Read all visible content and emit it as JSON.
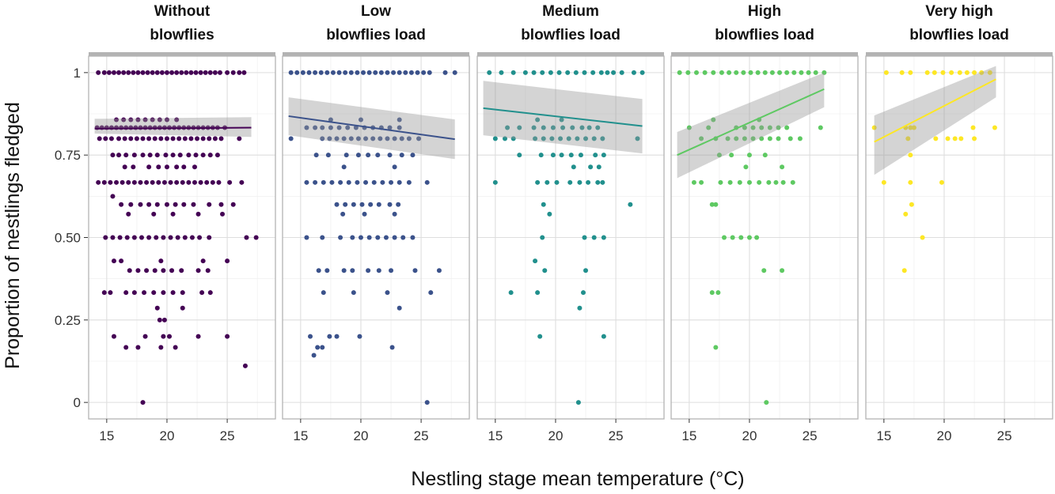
{
  "chart_data": {
    "type": "scatter",
    "xlabel": "Nestling stage mean temperature (°C)",
    "ylabel": "Proportion of nestlings fledged",
    "xlim": [
      13.5,
      29
    ],
    "ylim": [
      -0.05,
      1.05
    ],
    "x_ticks": [
      15,
      20,
      25
    ],
    "x_tick_labels": [
      "15",
      "20",
      "25"
    ],
    "y_ticks": [
      0,
      0.25,
      0.5,
      0.75,
      1
    ],
    "y_tick_labels": [
      "0",
      "0.25",
      "0.50",
      "0.75",
      "1"
    ],
    "grid": true,
    "legend": "none",
    "panels": [
      {
        "title_line1": "Without",
        "title_line2": "blowflies",
        "color": "#440154",
        "fit": {
          "x": [
            14,
            27
          ],
          "y": [
            0.83,
            0.833
          ]
        },
        "ci": {
          "upper": [
            0.86,
            0.865
          ],
          "lower": [
            0.815,
            0.805
          ]
        },
        "groups": [
          {
            "y": 1,
            "x": [
              14.3,
              14.8,
              15.2,
              15.6,
              16.0,
              16.4,
              16.8,
              17.2,
              17.6,
              18.0,
              18.4,
              18.8,
              19.2,
              19.6,
              20.0,
              20.4,
              20.8,
              21.2,
              21.6,
              22.0,
              22.4,
              22.8,
              23.2,
              23.6,
              24.0,
              24.4,
              25.0,
              25.5,
              26.0,
              26.4
            ]
          },
          {
            "y": 0.857,
            "x": [
              15.8,
              16.4,
              17.0,
              17.6,
              18.2,
              18.8,
              19.4,
              20.0,
              20.8
            ]
          },
          {
            "y": 0.833,
            "x": [
              14.2,
              14.6,
              15.0,
              15.4,
              15.8,
              16.2,
              16.6,
              17.0,
              17.4,
              17.8,
              18.2,
              18.6,
              19.0,
              19.4,
              19.8,
              20.2,
              20.6,
              21.0,
              21.4,
              21.8,
              22.2,
              22.6,
              23.0,
              23.4,
              23.8,
              24.2,
              24.8
            ]
          },
          {
            "y": 0.8,
            "x": [
              14.4,
              14.9,
              15.4,
              16.0,
              16.5,
              17.0,
              17.5,
              18.0,
              18.5,
              19.0,
              19.5,
              20.0,
              20.5,
              21.0,
              21.5,
              22.0,
              22.5,
              23.0,
              23.5,
              24.0,
              24.5,
              26.0
            ]
          },
          {
            "y": 0.75,
            "x": [
              15.5,
              16.0,
              16.6,
              17.3,
              18.0,
              18.6,
              19.2,
              19.9,
              20.5,
              21.1,
              21.8,
              22.4,
              23.0,
              23.6,
              24.2
            ]
          },
          {
            "y": 0.714,
            "x": [
              16.5,
              17.2,
              18.5,
              19.3,
              20.0,
              20.8,
              21.4,
              22.3
            ]
          },
          {
            "y": 0.667,
            "x": [
              14.3,
              14.8,
              15.3,
              15.8,
              16.3,
              16.8,
              17.3,
              17.8,
              18.3,
              18.8,
              19.3,
              19.8,
              20.3,
              20.8,
              21.3,
              21.8,
              22.3,
              22.8,
              23.3,
              23.8,
              24.3,
              25.2,
              26.2
            ]
          },
          {
            "y": 0.625,
            "x": [
              15.5
            ]
          },
          {
            "y": 0.6,
            "x": [
              16.2,
              17.0,
              17.8,
              18.5,
              19.2,
              20.0,
              20.7,
              21.4,
              22.2,
              23.5,
              24.5,
              25.5
            ]
          },
          {
            "y": 0.571,
            "x": [
              16.8,
              18.9,
              20.5,
              22.6,
              24.6
            ]
          },
          {
            "y": 0.5,
            "x": [
              14.9,
              15.5,
              16.1,
              16.7,
              17.3,
              17.9,
              18.5,
              19.1,
              19.7,
              20.3,
              20.9,
              21.5,
              22.1,
              22.7,
              23.5,
              26.6,
              27.4
            ]
          },
          {
            "y": 0.429,
            "x": [
              15.6,
              16.2,
              19.5,
              23.0,
              25.0
            ]
          },
          {
            "y": 0.4,
            "x": [
              16.9,
              17.6,
              18.3,
              19.0,
              19.7,
              20.4,
              21.2,
              22.6,
              23.4
            ]
          },
          {
            "y": 0.333,
            "x": [
              14.8,
              15.3,
              16.6,
              17.3,
              18.1,
              18.9,
              19.7,
              20.5,
              21.3,
              22.9,
              23.6
            ]
          },
          {
            "y": 0.286,
            "x": [
              19.2,
              21.3
            ]
          },
          {
            "y": 0.25,
            "x": [
              19.4,
              19.8
            ]
          },
          {
            "y": 0.2,
            "x": [
              15.6,
              18.2,
              19.7,
              20.2,
              22.6,
              25.0
            ]
          },
          {
            "y": 0.167,
            "x": [
              16.6,
              17.6,
              19.5,
              20.7
            ]
          },
          {
            "y": 0.111,
            "x": [
              26.5
            ]
          },
          {
            "y": 0,
            "x": [
              18.0
            ]
          }
        ]
      },
      {
        "title_line1": "Low",
        "title_line2": "blowflies load",
        "color": "#3b528b",
        "fit": {
          "x": [
            14,
            27.8
          ],
          "y": [
            0.868,
            0.798
          ]
        },
        "ci": {
          "upper": [
            0.925,
            0.858
          ],
          "lower": [
            0.81,
            0.738
          ]
        },
        "groups": [
          {
            "y": 1,
            "x": [
              14.2,
              14.7,
              15.2,
              15.7,
              16.2,
              16.7,
              17.2,
              17.7,
              18.2,
              18.7,
              19.2,
              19.7,
              20.2,
              20.7,
              21.2,
              21.7,
              22.2,
              22.7,
              23.2,
              23.7,
              24.2,
              24.7,
              25.2,
              25.7,
              27.0,
              27.8
            ]
          },
          {
            "y": 0.857,
            "x": [
              17.5,
              20.0,
              23.2
            ]
          },
          {
            "y": 0.833,
            "x": [
              15.5,
              16.2,
              16.8,
              17.5,
              18.2,
              18.9,
              19.6,
              20.3,
              21.0,
              21.7,
              22.4,
              23.2
            ]
          },
          {
            "y": 0.8,
            "x": [
              14.2,
              16.8,
              17.4,
              18.0,
              18.6,
              19.2,
              19.8,
              20.4,
              21.0,
              21.6,
              22.2,
              22.8,
              23.4,
              24.0,
              24.8
            ]
          },
          {
            "y": 0.75,
            "x": [
              16.3,
              17.3,
              18.8,
              19.8,
              20.6,
              21.4,
              22.4,
              23.4,
              24.3
            ]
          },
          {
            "y": 0.714,
            "x": [
              18.6,
              22.8
            ]
          },
          {
            "y": 0.667,
            "x": [
              15.5,
              16.2,
              16.9,
              17.6,
              18.3,
              19.0,
              19.7,
              20.4,
              21.1,
              21.8,
              22.5,
              23.2,
              24.0,
              25.5
            ]
          },
          {
            "y": 0.6,
            "x": [
              18.0,
              18.7,
              19.4,
              20.1,
              20.8,
              21.5,
              22.4,
              23.1
            ]
          },
          {
            "y": 0.571,
            "x": [
              18.5,
              20.3,
              22.8
            ]
          },
          {
            "y": 0.5,
            "x": [
              15.5,
              16.8,
              18.3,
              19.3,
              20.0,
              20.7,
              21.4,
              22.1,
              22.8,
              23.5,
              24.3
            ]
          },
          {
            "y": 0.4,
            "x": [
              16.5,
              17.2,
              18.6,
              19.3,
              20.6,
              21.5,
              22.5,
              24.5,
              26.5
            ]
          },
          {
            "y": 0.333,
            "x": [
              16.9,
              19.4,
              22.2,
              25.8
            ]
          },
          {
            "y": 0.286,
            "x": [
              23.2
            ]
          },
          {
            "y": 0.2,
            "x": [
              15.8,
              17.4,
              18.0,
              19.9
            ]
          },
          {
            "y": 0.167,
            "x": [
              16.4,
              16.8,
              22.6
            ]
          },
          {
            "y": 0.143,
            "x": [
              16.1
            ]
          },
          {
            "y": 0,
            "x": [
              25.5
            ]
          }
        ]
      },
      {
        "title_line1": "Medium",
        "title_line2": "blowflies load",
        "color": "#21908d",
        "fit": {
          "x": [
            14,
            27.2
          ],
          "y": [
            0.892,
            0.838
          ]
        },
        "ci": {
          "upper": [
            0.975,
            0.92
          ],
          "lower": [
            0.81,
            0.755
          ]
        },
        "groups": [
          {
            "y": 1,
            "x": [
              14.5,
              15.5,
              16.5,
              17.5,
              18.2,
              18.9,
              19.6,
              20.3,
              21.0,
              21.7,
              22.4,
              23.1,
              23.8,
              24.3,
              24.8,
              25.5,
              26.5,
              27.2
            ]
          },
          {
            "y": 0.833,
            "x": [
              16.0,
              17.0,
              18.2,
              19.0,
              19.8,
              20.6,
              21.4,
              22.2,
              22.8,
              23.5
            ]
          },
          {
            "y": 0.857,
            "x": [
              18.5,
              20.5
            ]
          },
          {
            "y": 0.8,
            "x": [
              15.0,
              15.8,
              16.5,
              18.3,
              19.0,
              19.7,
              20.4,
              21.1,
              21.8,
              22.5,
              23.2,
              23.9,
              26.8
            ]
          },
          {
            "y": 0.75,
            "x": [
              17.0,
              18.8,
              19.8,
              20.5,
              21.3,
              22.1,
              23.3,
              24.0
            ]
          },
          {
            "y": 0.714,
            "x": [
              21.5,
              22.9,
              23.6
            ]
          },
          {
            "y": 0.667,
            "x": [
              15.0,
              18.5,
              19.3,
              20.1,
              21.2,
              22.0,
              22.7,
              23.5,
              23.9
            ]
          },
          {
            "y": 0.6,
            "x": [
              19.0,
              26.2
            ]
          },
          {
            "y": 0.571,
            "x": [
              19.5
            ]
          },
          {
            "y": 0.5,
            "x": [
              18.9,
              22.4,
              23.2,
              24.0
            ]
          },
          {
            "y": 0.429,
            "x": [
              18.3
            ]
          },
          {
            "y": 0.4,
            "x": [
              19.1,
              22.5
            ]
          },
          {
            "y": 0.333,
            "x": [
              16.3,
              18.5,
              22.3
            ]
          },
          {
            "y": 0.286,
            "x": [
              22.0
            ]
          },
          {
            "y": 0.2,
            "x": [
              18.7,
              24.0
            ]
          },
          {
            "y": 0,
            "x": [
              21.9
            ]
          }
        ]
      },
      {
        "title_line1": "High",
        "title_line2": "blowflies load",
        "color": "#5ec962",
        "fit": {
          "x": [
            14,
            26.2
          ],
          "y": [
            0.75,
            0.95
          ]
        },
        "ci": {
          "upper": [
            0.82,
            1.0
          ],
          "lower": [
            0.68,
            0.895
          ]
        },
        "groups": [
          {
            "y": 1,
            "x": [
              14.2,
              14.9,
              15.6,
              16.3,
              17.0,
              17.7,
              18.3,
              18.9,
              19.5,
              20.1,
              20.7,
              21.3,
              21.9,
              22.5,
              23.1,
              23.7,
              24.3,
              24.9,
              25.5,
              26.2
            ]
          },
          {
            "y": 0.857,
            "x": [
              17.0,
              20.8
            ]
          },
          {
            "y": 0.833,
            "x": [
              15.0,
              16.6,
              18.9,
              19.6,
              20.3,
              21.0,
              21.7,
              22.4,
              23.1,
              25.9
            ]
          },
          {
            "y": 0.8,
            "x": [
              16.0,
              17.2,
              18.2,
              18.9,
              19.6,
              20.3,
              21.0,
              21.7,
              22.4,
              23.4,
              24.2
            ]
          },
          {
            "y": 0.75,
            "x": [
              17.5,
              18.5,
              20.0,
              21.3
            ]
          },
          {
            "y": 0.714,
            "x": [
              19.7,
              22.7
            ]
          },
          {
            "y": 0.667,
            "x": [
              15.4,
              16.0,
              17.6,
              18.4,
              19.2,
              20.0,
              20.8,
              21.6,
              22.2,
              22.8,
              23.6
            ]
          },
          {
            "y": 0.6,
            "x": [
              16.9,
              17.2
            ]
          },
          {
            "y": 0.5,
            "x": [
              17.9,
              18.6,
              19.3,
              20.0,
              20.6
            ]
          },
          {
            "y": 0.4,
            "x": [
              21.2,
              22.7
            ]
          },
          {
            "y": 0.333,
            "x": [
              16.9,
              17.4
            ]
          },
          {
            "y": 0.167,
            "x": [
              17.2
            ]
          },
          {
            "y": 0,
            "x": [
              21.4
            ]
          }
        ]
      },
      {
        "title_line1": "Very high",
        "title_line2": "blowflies load",
        "color": "#fde725",
        "fit": {
          "x": [
            14.2,
            24.3
          ],
          "y": [
            0.79,
            0.98
          ]
        },
        "ci": {
          "upper": [
            0.87,
            1.02
          ],
          "lower": [
            0.69,
            0.925
          ]
        },
        "groups": [
          {
            "y": 1,
            "x": [
              15.2,
              16.5,
              17.2,
              18.6,
              19.2,
              19.9,
              20.6,
              21.3,
              21.9,
              22.5,
              23.1,
              23.8
            ]
          },
          {
            "y": 0.833,
            "x": [
              14.2,
              16.8,
              17.2,
              17.5,
              22.4,
              24.2
            ]
          },
          {
            "y": 0.8,
            "x": [
              17.0,
              19.3,
              20.3,
              20.9,
              21.4,
              22.5
            ]
          },
          {
            "y": 0.75,
            "x": [
              17.2
            ]
          },
          {
            "y": 0.667,
            "x": [
              15.0,
              17.2,
              19.8
            ]
          },
          {
            "y": 0.6,
            "x": [
              17.3
            ]
          },
          {
            "y": 0.571,
            "x": [
              16.8
            ]
          },
          {
            "y": 0.5,
            "x": [
              18.2
            ]
          },
          {
            "y": 0.4,
            "x": [
              16.7
            ]
          }
        ]
      }
    ]
  }
}
